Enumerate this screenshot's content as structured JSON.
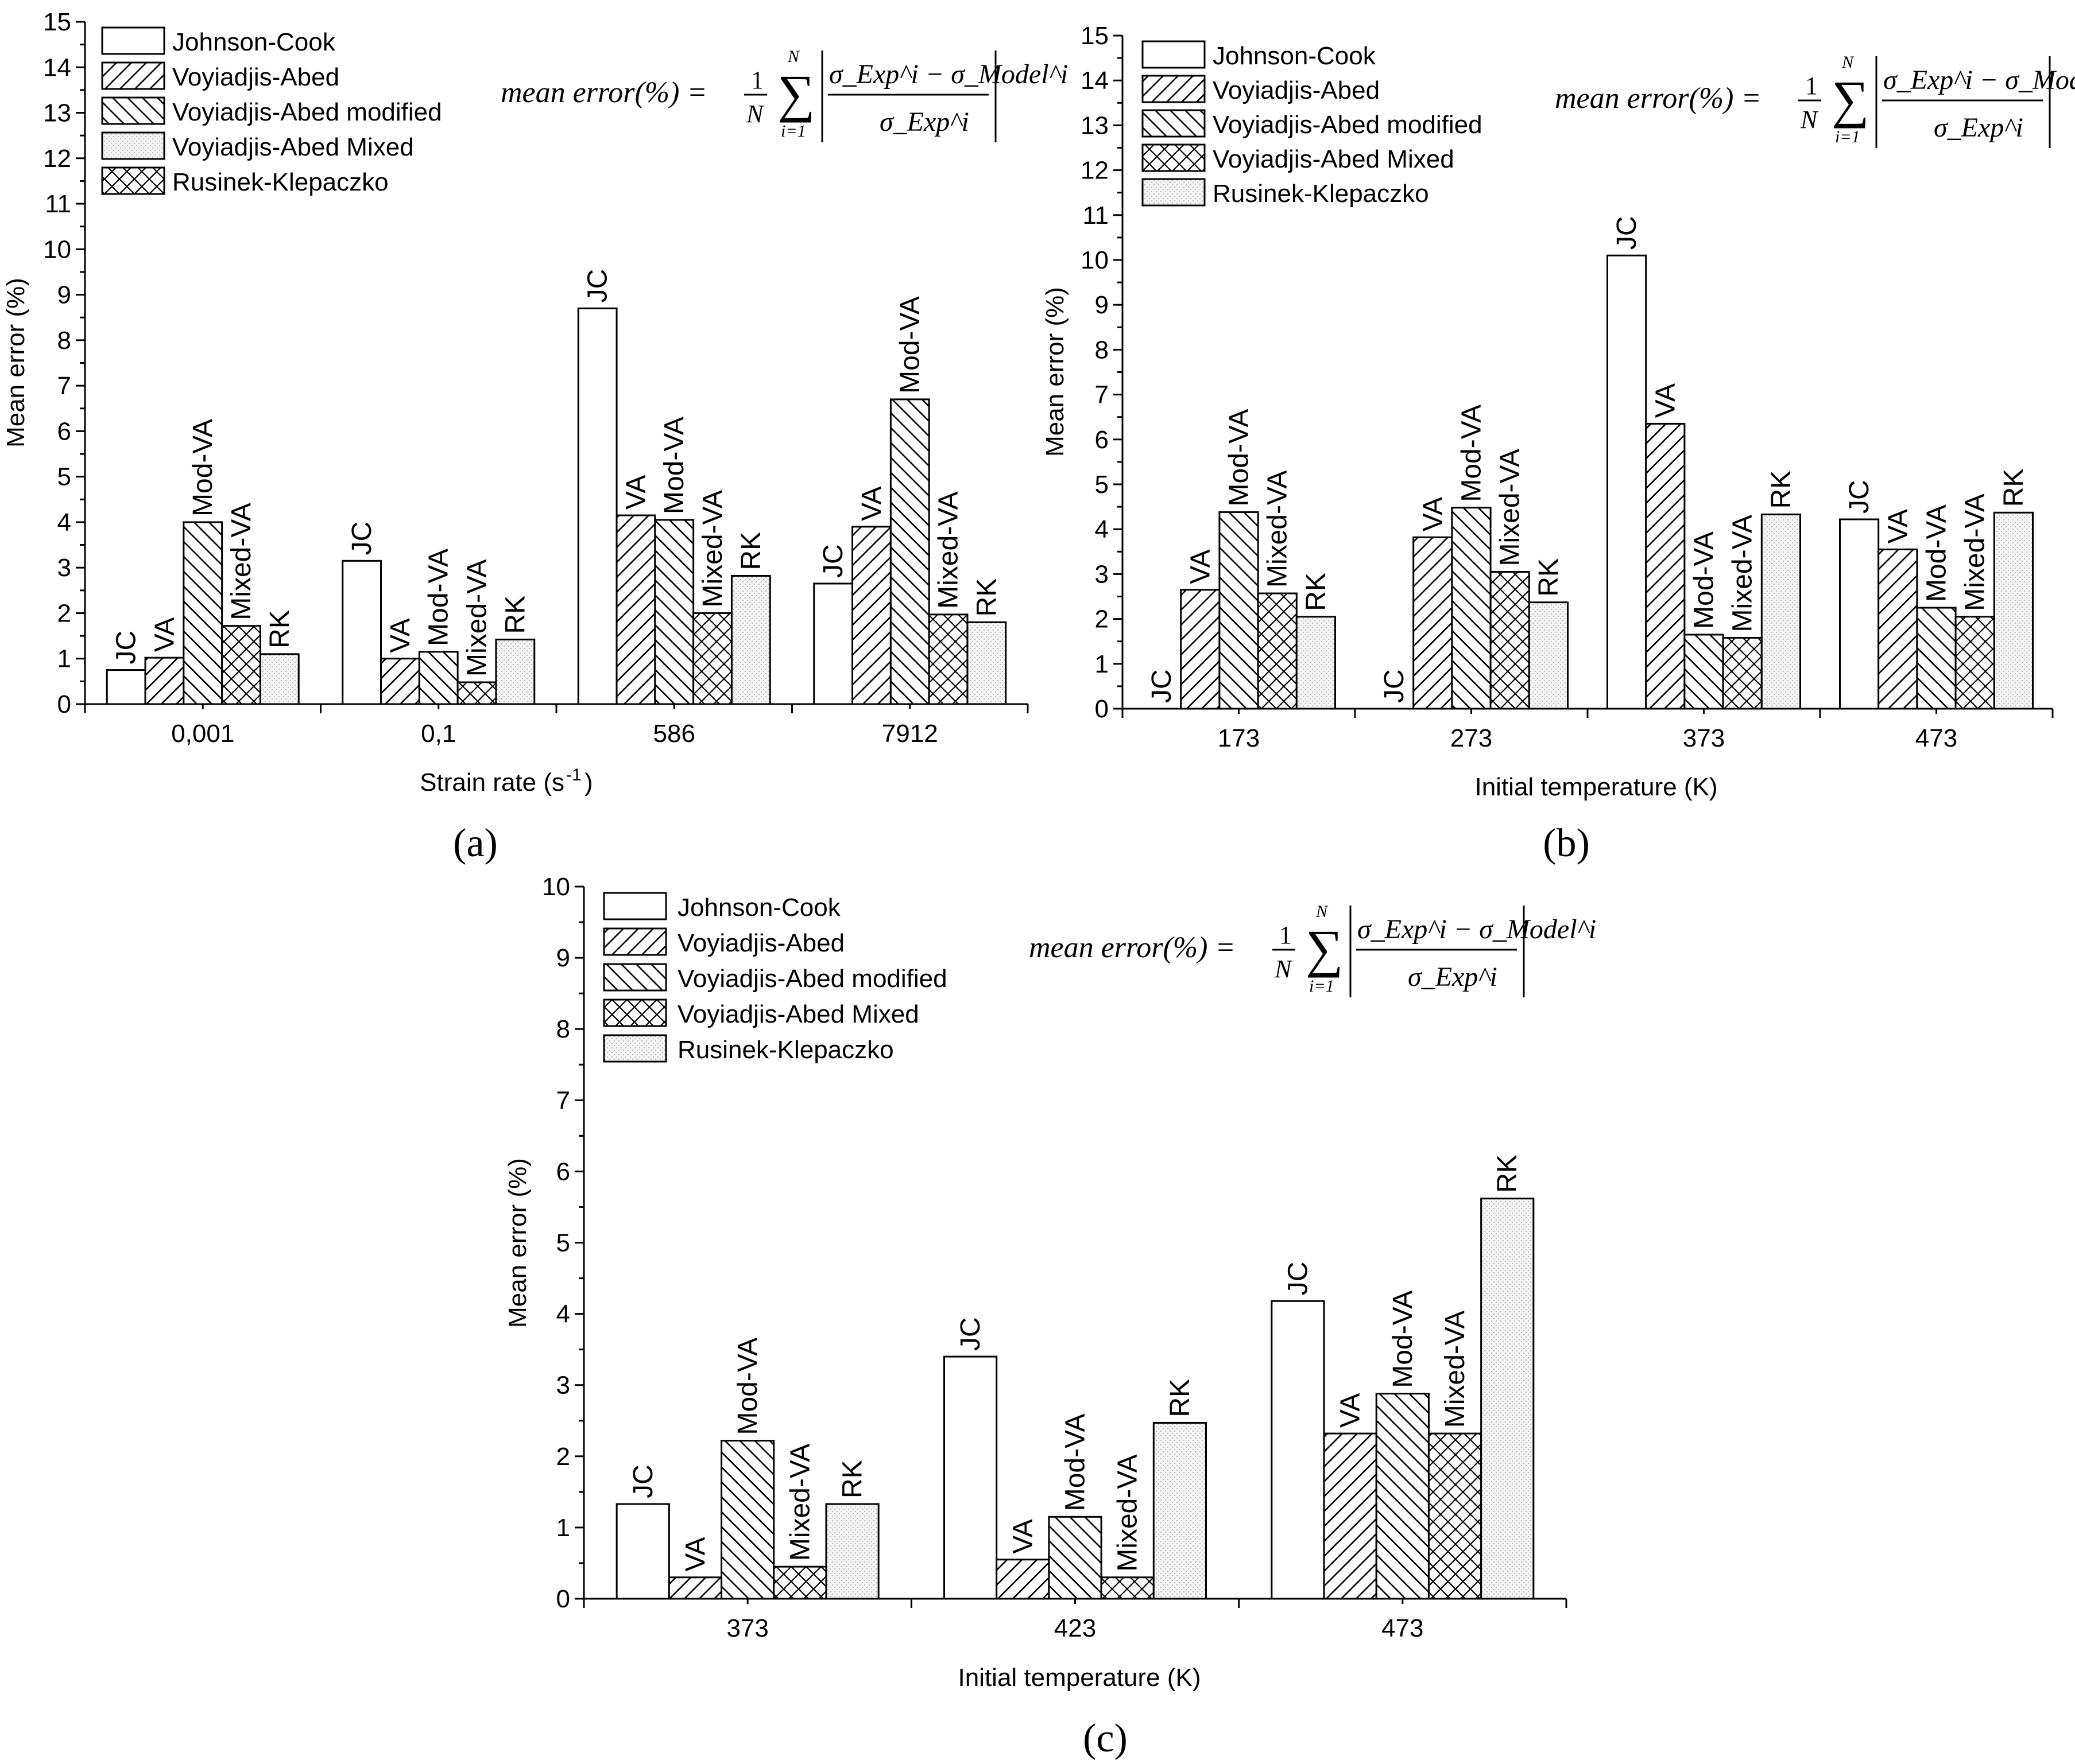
{
  "figure": {
    "formula": {
      "lhs": "mean error(%) =",
      "frac_num": "1",
      "frac_den": "N",
      "sum_upper": "N",
      "sum_lower": "i=1",
      "numerator": "σ_Exp^i − σ_Model^i",
      "denominator": "σ_Exp^i"
    },
    "bar_label_abbrev": [
      "JC",
      "VA",
      "Mod-VA",
      "Mixed-VA",
      "RK"
    ]
  },
  "chart_data": [
    {
      "panel": "(a)",
      "type": "bar",
      "xlabel": "Strain rate (s",
      "xlabel_sup": "-1",
      "xlabel_close": ")",
      "ylabel": "Mean error (%)",
      "ylim": [
        0,
        15
      ],
      "yticks": [
        0,
        1,
        2,
        3,
        4,
        5,
        6,
        7,
        8,
        9,
        10,
        11,
        12,
        13,
        14,
        15
      ],
      "categories": [
        "0,001",
        "0,1",
        "586",
        "7912"
      ],
      "legend": [
        {
          "name": "Johnson-Cook",
          "pattern": "empty"
        },
        {
          "name": "Voyiadjis-Abed",
          "pattern": "fwd"
        },
        {
          "name": "Voyiadjis-Abed modified",
          "pattern": "back"
        },
        {
          "name": "Voyiadjis-Abed Mixed",
          "pattern": "dots"
        },
        {
          "name": "Rusinek-Klepaczko",
          "pattern": "cross"
        }
      ],
      "series": [
        {
          "name": "Johnson-Cook",
          "label": "JC",
          "pattern": "empty",
          "values": [
            0.75,
            3.15,
            8.7,
            2.65
          ]
        },
        {
          "name": "Voyiadjis-Abed",
          "label": "VA",
          "pattern": "fwd",
          "values": [
            1.02,
            1.0,
            4.15,
            3.9
          ]
        },
        {
          "name": "Voyiadjis-Abed modified",
          "label": "Mod-VA",
          "pattern": "back",
          "values": [
            4.0,
            1.15,
            4.05,
            6.7
          ]
        },
        {
          "name": "Voyiadjis-Abed Mixed",
          "label": "Mixed-VA",
          "pattern": "cross",
          "values": [
            1.72,
            0.48,
            2.0,
            1.97
          ]
        },
        {
          "name": "Rusinek-Klepaczko",
          "label": "RK",
          "pattern": "dots",
          "values": [
            1.1,
            1.42,
            2.82,
            1.8
          ]
        }
      ]
    },
    {
      "panel": "(b)",
      "type": "bar",
      "xlabel": "Initial temperature (K)",
      "ylabel": "Mean error (%)",
      "ylim": [
        0,
        15
      ],
      "yticks": [
        0,
        1,
        2,
        3,
        4,
        5,
        6,
        7,
        8,
        9,
        10,
        11,
        12,
        13,
        14,
        15
      ],
      "categories": [
        "173",
        "273",
        "373",
        "473"
      ],
      "legend": [
        {
          "name": "Johnson-Cook",
          "pattern": "empty"
        },
        {
          "name": "Voyiadjis-Abed",
          "pattern": "fwd"
        },
        {
          "name": "Voyiadjis-Abed modified",
          "pattern": "back"
        },
        {
          "name": "Voyiadjis-Abed Mixed",
          "pattern": "cross"
        },
        {
          "name": "Rusinek-Klepaczko",
          "pattern": "dots"
        }
      ],
      "series": [
        {
          "name": "Johnson-Cook",
          "label": "JC",
          "pattern": "empty",
          "values": [
            0,
            0,
            10.1,
            4.22
          ]
        },
        {
          "name": "Voyiadjis-Abed",
          "label": "VA",
          "pattern": "fwd",
          "values": [
            2.65,
            3.82,
            6.35,
            3.55
          ]
        },
        {
          "name": "Voyiadjis-Abed modified",
          "label": "Mod-VA",
          "pattern": "back",
          "values": [
            4.38,
            4.48,
            1.65,
            2.25
          ]
        },
        {
          "name": "Voyiadjis-Abed Mixed",
          "label": "Mixed-VA",
          "pattern": "cross",
          "values": [
            2.57,
            3.05,
            1.58,
            2.05
          ]
        },
        {
          "name": "Rusinek-Klepaczko",
          "label": "RK",
          "pattern": "dots",
          "values": [
            2.05,
            2.37,
            4.33,
            4.37
          ]
        }
      ]
    },
    {
      "panel": "(c)",
      "type": "bar",
      "xlabel": "Initial temperature (K)",
      "ylabel": "Mean error (%)",
      "ylim": [
        0,
        10
      ],
      "yticks": [
        0,
        1,
        2,
        3,
        4,
        5,
        6,
        7,
        8,
        9,
        10
      ],
      "categories": [
        "373",
        "423",
        "473"
      ],
      "legend": [
        {
          "name": "Johnson-Cook",
          "pattern": "empty"
        },
        {
          "name": "Voyiadjis-Abed",
          "pattern": "fwd"
        },
        {
          "name": "Voyiadjis-Abed modified",
          "pattern": "back"
        },
        {
          "name": "Voyiadjis-Abed Mixed",
          "pattern": "cross"
        },
        {
          "name": "Rusinek-Klepaczko",
          "pattern": "dots"
        }
      ],
      "series": [
        {
          "name": "Johnson-Cook",
          "label": "JC",
          "pattern": "empty",
          "values": [
            1.33,
            3.4,
            4.18
          ]
        },
        {
          "name": "Voyiadjis-Abed",
          "label": "VA",
          "pattern": "fwd",
          "values": [
            0.3,
            0.55,
            2.32
          ]
        },
        {
          "name": "Voyiadjis-Abed modified",
          "label": "Mod-VA",
          "pattern": "back",
          "values": [
            2.22,
            1.15,
            2.88
          ]
        },
        {
          "name": "Voyiadjis-Abed Mixed",
          "label": "Mixed-VA",
          "pattern": "cross",
          "values": [
            0.45,
            0.3,
            2.32
          ]
        },
        {
          "name": "Rusinek-Klepaczko",
          "label": "RK",
          "pattern": "dots",
          "values": [
            1.33,
            2.47,
            5.62
          ]
        }
      ]
    }
  ]
}
